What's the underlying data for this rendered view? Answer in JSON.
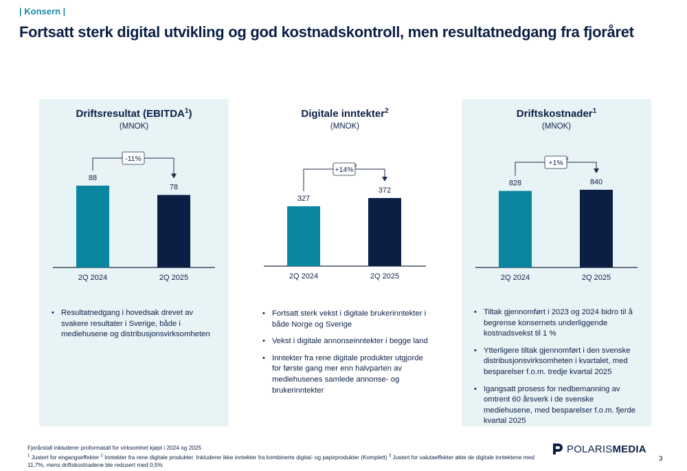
{
  "header": {
    "section": "| Konsern |",
    "title": "Fortsatt sterk digital utvikling og god kostnadskontroll, men resultatnedgang fra fjoråret"
  },
  "colors": {
    "bar_prior": "#0a86a0",
    "bar_current": "#0b1f44",
    "panel_bg": "#e8f3f6"
  },
  "panels": [
    {
      "title": "Driftsresultat (EBITDA",
      "sup": "1",
      "title_end": ")",
      "unit": "(MNOK)",
      "change": "-11%",
      "bullets": [
        "Resultatnedgang i hovedsak drevet av svakere resultater i Sverige, både i mediehusene og distribusjonsvirksomheten"
      ]
    },
    {
      "title": "Digitale inntekter",
      "sup": "2",
      "title_end": "",
      "unit": "(MNOK)",
      "change": "+14%",
      "change_sup": "3",
      "bullets": [
        "Fortsatt sterk vekst i digitale brukerinntekter i både Norge og Sverige",
        "Vekst i digitale annonseinntekter i begge land",
        "Inntekter fra rene digitale produkter utgjorde for første gang mer enn halvparten av mediehusenes samlede annonse- og brukerinntekter"
      ]
    },
    {
      "title": "Driftskostnader",
      "sup": "1",
      "title_end": "",
      "unit": "(MNOK)",
      "change": "+1%",
      "change_sup": "3",
      "bullets": [
        "Tiltak gjennomført i 2023 og 2024 bidro til å begrense konsernets underliggende kostnadsvekst til 1 %",
        "Ytterligere tiltak gjennomført i den svenske distribusjonsvirksomheten i kvartalet, med besparelser f.o.m. tredje kvartal 2025",
        "Igangsatt prosess for nedbemanning av omtrent 60 årsverk i de svenske mediehusene, med besparelser f.o.m. fjerde kvartal 2025"
      ]
    }
  ],
  "chart_data": [
    {
      "type": "bar",
      "title": "Driftsresultat (EBITDA1)",
      "ylabel": "(MNOK)",
      "categories": [
        "2Q 2024",
        "2Q 2025"
      ],
      "values": [
        88,
        78
      ],
      "annotation": "-11%"
    },
    {
      "type": "bar",
      "title": "Digitale inntekter2",
      "ylabel": "(MNOK)",
      "categories": [
        "2Q 2024",
        "2Q 2025"
      ],
      "values": [
        327,
        372
      ],
      "annotation": "+14%3"
    },
    {
      "type": "bar",
      "title": "Driftskostnader1",
      "ylabel": "(MNOK)",
      "categories": [
        "2Q 2024",
        "2Q 2025"
      ],
      "values": [
        828,
        840
      ],
      "annotation": "+1%3"
    }
  ],
  "footnotes": {
    "line1": "Fjorårstall inkluderer proformatall for virksomhet kjøpt i 2024 og 2025",
    "n1": "1",
    "t1": " Justert for engangseffekter ",
    "n2": "2",
    "t2": " Inntekter fra rene digitale produkter. Inkluderer ikke inntekter fra kombinerte digital- og papirprodukter (Komplett) ",
    "n3": "3",
    "t3": " Justert for valutaeffekter økte de digitale inntektene med 11,7%, mens driftskostnadene ble redusert med 0,5%"
  },
  "logo": {
    "part1": "POLARIS",
    "part2": "MEDIA"
  },
  "page_number": "3"
}
